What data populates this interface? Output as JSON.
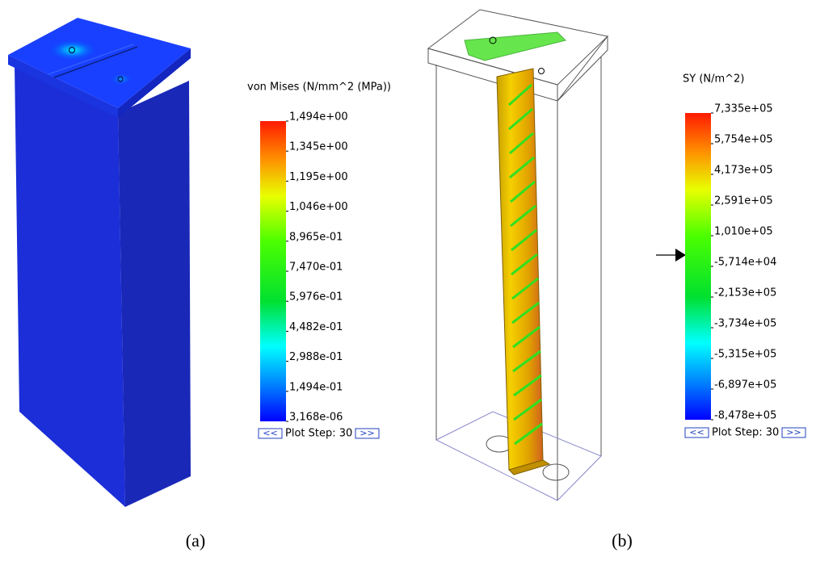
{
  "panels": [
    {
      "legend": {
        "title": "von Mises (N/mm^2 (MPa))",
        "labels": [
          "1,494e+00",
          "1,345e+00",
          "1,195e+00",
          "1,046e+00",
          "8,965e-01",
          "7,470e-01",
          "5,976e-01",
          "4,482e-01",
          "2,988e-01",
          "1,494e-01",
          "3,168e-06"
        ]
      },
      "prev": "<<",
      "plot_step": "Plot Step: 30",
      "next": ">>",
      "caption": "(a)"
    },
    {
      "legend": {
        "title": "SY (N/m^2)",
        "labels": [
          "7,335e+05",
          "5,754e+05",
          "4,173e+05",
          "2,591e+05",
          "1,010e+05",
          "-5,714e+04",
          "-2,153e+05",
          "-3,734e+05",
          "-5,315e+05",
          "-6,897e+05",
          "-8,478e+05"
        ]
      },
      "prev": "<<",
      "plot_step": "Plot Step: 30",
      "next": ">>",
      "caption": "(b)"
    }
  ]
}
